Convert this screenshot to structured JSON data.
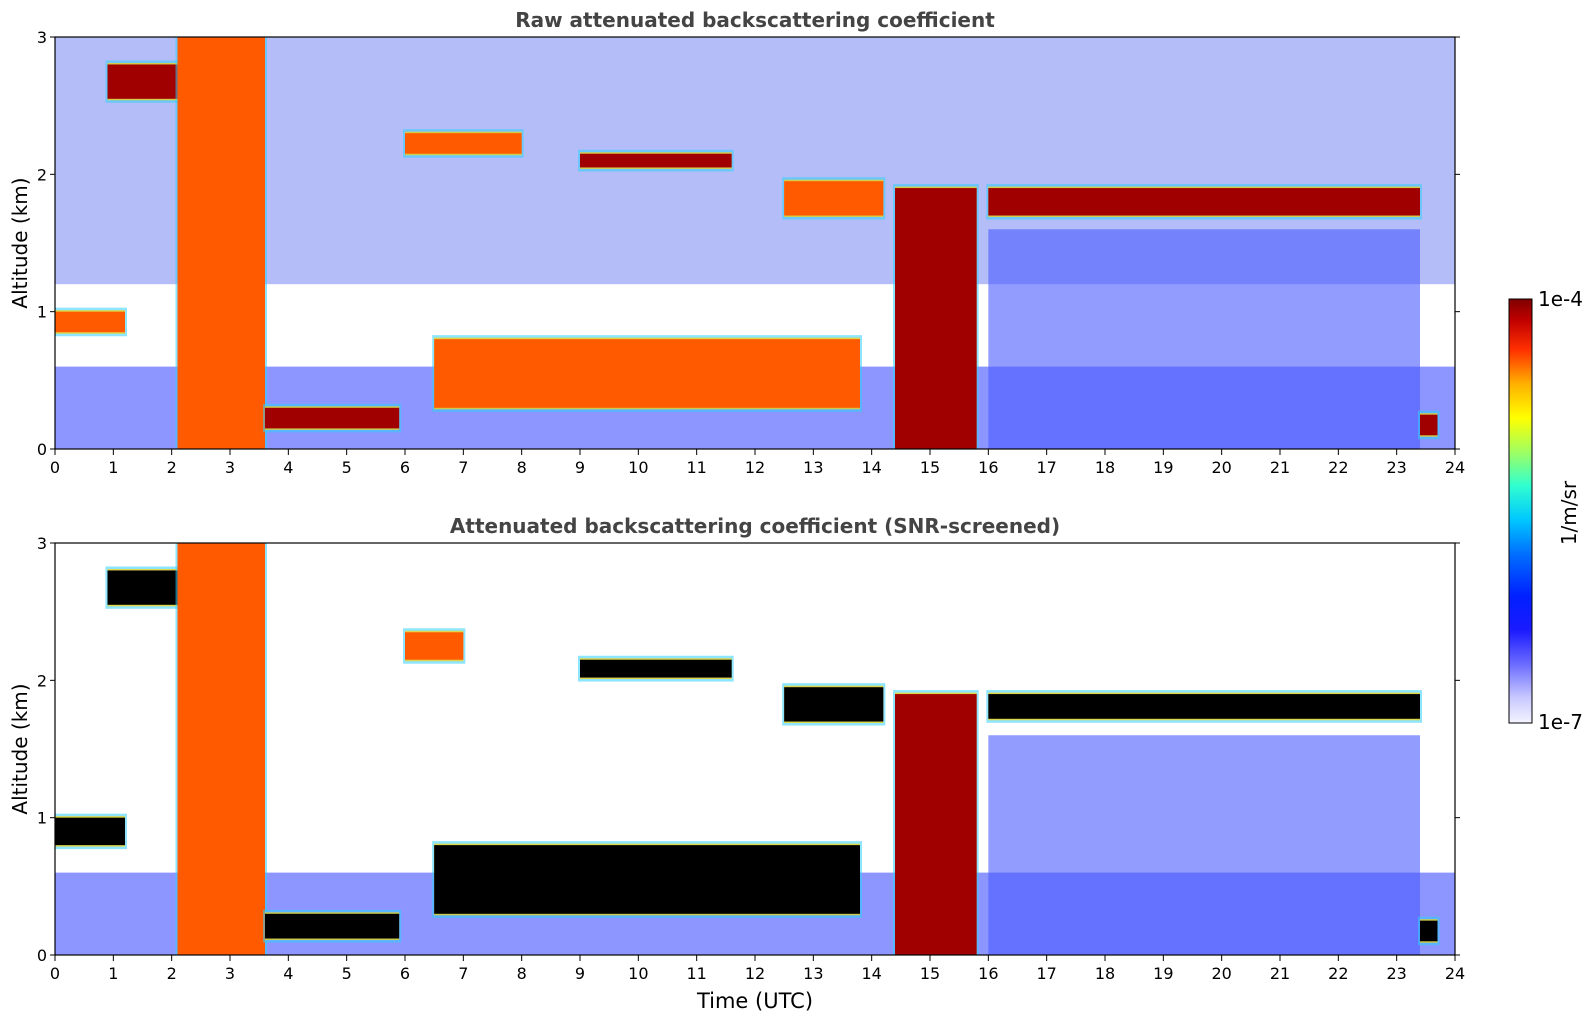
{
  "figure": {
    "colorbar": {
      "label": "1/m/sr",
      "max_label": "1e-4",
      "min_label": "1e-7",
      "range": [
        1e-07,
        0.0001
      ],
      "scale": "log",
      "colormap": "jet-like (white → blue → cyan → yellow → red → dark red)"
    }
  },
  "chart_data": [
    {
      "type": "heatmap",
      "title": "Raw attenuated backscattering coefficient",
      "xlabel": "",
      "ylabel": "Altitude (km)",
      "xlim": [
        0,
        24
      ],
      "ylim": [
        0,
        3
      ],
      "x_ticks": [
        "0",
        "1",
        "2",
        "3",
        "4",
        "5",
        "6",
        "7",
        "8",
        "9",
        "10",
        "11",
        "12",
        "13",
        "14",
        "15",
        "16",
        "17",
        "18",
        "19",
        "20",
        "21",
        "22",
        "23",
        "24"
      ],
      "y_ticks": [
        "0",
        "1",
        "2",
        "3"
      ],
      "x_variable": "Time (UTC)",
      "z_variable": "attenuated backscatter (1/m/sr)",
      "features": [
        {
          "kind": "cloud layer",
          "t": [
            0.0,
            1.2
          ],
          "z": [
            0.85,
            1.0
          ],
          "intensity": "high"
        },
        {
          "kind": "thick cloud",
          "t": [
            0.9,
            2.2
          ],
          "z": [
            2.55,
            2.8
          ],
          "intensity": "very high"
        },
        {
          "kind": "precipitation/fall streak",
          "t": [
            2.1,
            3.6
          ],
          "z": [
            0.0,
            3.0
          ],
          "intensity": "high"
        },
        {
          "kind": "boundary layer top",
          "t": [
            3.6,
            5.9
          ],
          "z": [
            0.15,
            0.3
          ],
          "intensity": "very high"
        },
        {
          "kind": "mid-level cloud",
          "t": [
            6.0,
            8.0
          ],
          "z": [
            2.15,
            2.3
          ],
          "intensity": "high"
        },
        {
          "kind": "mid-level cloud",
          "t": [
            9.0,
            11.6
          ],
          "z": [
            2.05,
            2.15
          ],
          "intensity": "very high"
        },
        {
          "kind": "rising boundary layer top",
          "t": [
            6.5,
            13.8
          ],
          "z": [
            0.3,
            0.8
          ],
          "intensity": "high"
        },
        {
          "kind": "cloud layer",
          "t": [
            12.5,
            14.2
          ],
          "z": [
            1.7,
            1.95
          ],
          "intensity": "high"
        },
        {
          "kind": "rain columns",
          "t": [
            14.4,
            15.8
          ],
          "z": [
            0.0,
            1.9
          ],
          "intensity": "very high"
        },
        {
          "kind": "stratocumulus deck",
          "t": [
            16.0,
            23.4
          ],
          "z": [
            1.7,
            1.9
          ],
          "intensity": "very high"
        },
        {
          "kind": "low cloud",
          "t": [
            23.4,
            23.7
          ],
          "z": [
            0.1,
            0.25
          ],
          "intensity": "very high"
        }
      ]
    },
    {
      "type": "heatmap",
      "title": "Attenuated backscattering coefficient (SNR-screened)",
      "xlabel": "Time (UTC)",
      "ylabel": "Altitude (km)",
      "xlim": [
        0,
        24
      ],
      "ylim": [
        0,
        3
      ],
      "x_ticks": [
        "0",
        "1",
        "2",
        "3",
        "4",
        "5",
        "6",
        "7",
        "8",
        "9",
        "10",
        "11",
        "12",
        "13",
        "14",
        "15",
        "16",
        "17",
        "18",
        "19",
        "20",
        "21",
        "22",
        "23",
        "24"
      ],
      "y_ticks": [
        "0",
        "1",
        "2",
        "3"
      ],
      "x_variable": "Time (UTC)",
      "z_variable": "attenuated backscatter (1/m/sr)",
      "features": [
        {
          "kind": "cloud layer",
          "t": [
            0.0,
            1.2
          ],
          "z": [
            0.8,
            1.0
          ],
          "intensity": "saturated"
        },
        {
          "kind": "thick cloud",
          "t": [
            0.9,
            2.2
          ],
          "z": [
            2.55,
            2.8
          ],
          "intensity": "saturated"
        },
        {
          "kind": "precipitation/fall streak",
          "t": [
            2.1,
            3.6
          ],
          "z": [
            0.0,
            3.0
          ],
          "intensity": "high"
        },
        {
          "kind": "boundary layer top",
          "t": [
            3.6,
            5.9
          ],
          "z": [
            0.12,
            0.3
          ],
          "intensity": "saturated"
        },
        {
          "kind": "mid-level cloud",
          "t": [
            6.0,
            7.0
          ],
          "z": [
            2.15,
            2.35
          ],
          "intensity": "high"
        },
        {
          "kind": "mid-level cloud",
          "t": [
            9.0,
            11.6
          ],
          "z": [
            2.02,
            2.15
          ],
          "intensity": "saturated"
        },
        {
          "kind": "rising boundary layer top",
          "t": [
            6.5,
            13.8
          ],
          "z": [
            0.3,
            0.8
          ],
          "intensity": "saturated"
        },
        {
          "kind": "cloud layer",
          "t": [
            12.5,
            14.2
          ],
          "z": [
            1.7,
            1.95
          ],
          "intensity": "saturated"
        },
        {
          "kind": "rain columns",
          "t": [
            14.4,
            15.8
          ],
          "z": [
            0.0,
            1.9
          ],
          "intensity": "very high"
        },
        {
          "kind": "stratocumulus deck",
          "t": [
            16.0,
            23.4
          ],
          "z": [
            1.72,
            1.9
          ],
          "intensity": "saturated"
        },
        {
          "kind": "low cloud",
          "t": [
            23.4,
            23.7
          ],
          "z": [
            0.1,
            0.25
          ],
          "intensity": "saturated"
        }
      ]
    }
  ]
}
